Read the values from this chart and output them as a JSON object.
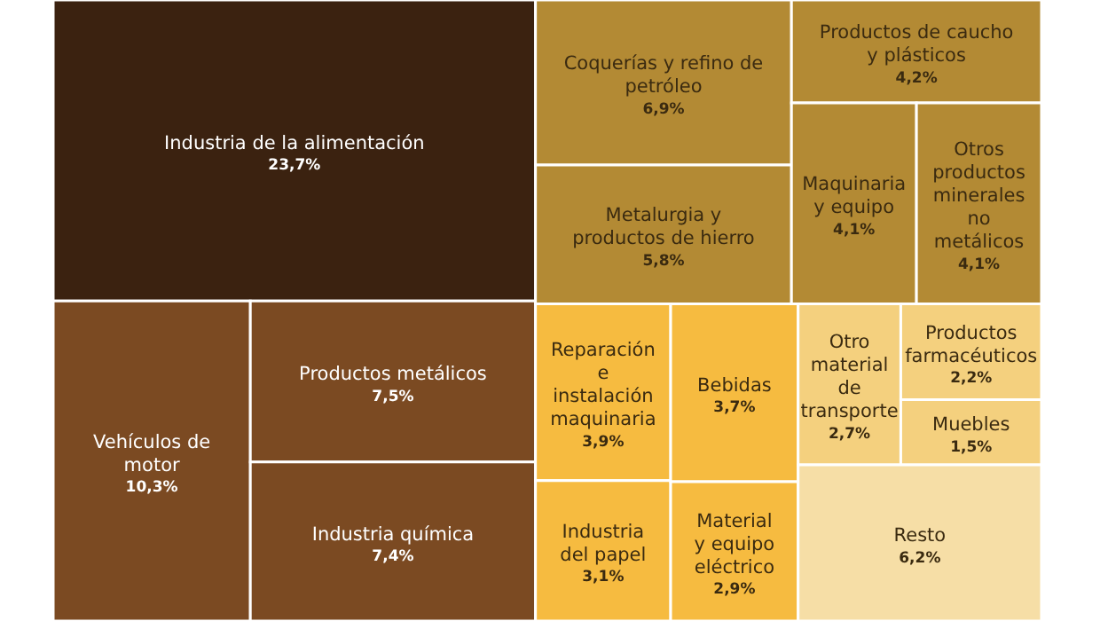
{
  "chart_data": {
    "type": "other",
    "categories": [
      "Industria de la alimentación",
      "Coquerías y refino de petróleo",
      "Productos de caucho y plásticos",
      "Metalurgia y productos de hierro",
      "Maquinaria y equipo",
      "Otros productos minerales no metálicos",
      "Vehículos de motor",
      "Productos metálicos",
      "Industria química",
      "Reparación e instalación maquinaria",
      "Bebidas",
      "Otro material de transporte",
      "Productos farmacéuticos",
      "Muebles",
      "Industria del papel",
      "Material y equipo eléctrico",
      "Resto"
    ],
    "values": [
      23.7,
      6.9,
      4.2,
      5.8,
      4.1,
      4.1,
      10.3,
      7.5,
      7.4,
      3.9,
      3.7,
      2.7,
      2.2,
      1.5,
      3.1,
      2.9,
      6.2
    ],
    "value_labels": [
      "23,7%",
      "6,9%",
      "4,2%",
      "5,8%",
      "4,1%",
      "4,1%",
      "10,3%",
      "7,5%",
      "7,4%",
      "3,9%",
      "3,7%",
      "2,7%",
      "2,2%",
      "1,5%",
      "3,1%",
      "2,9%",
      "6,2%"
    ],
    "colors": [
      "#3b2210",
      "#b38a34",
      "#b38a34",
      "#b38a34",
      "#b38a34",
      "#b38a34",
      "#7b4a22",
      "#7b4a22",
      "#7b4a22",
      "#f6bb40",
      "#f6bb40",
      "#f4d07e",
      "#f4d07e",
      "#f4d07e",
      "#f6bb40",
      "#f6bb40",
      "#f6dea6"
    ]
  }
}
